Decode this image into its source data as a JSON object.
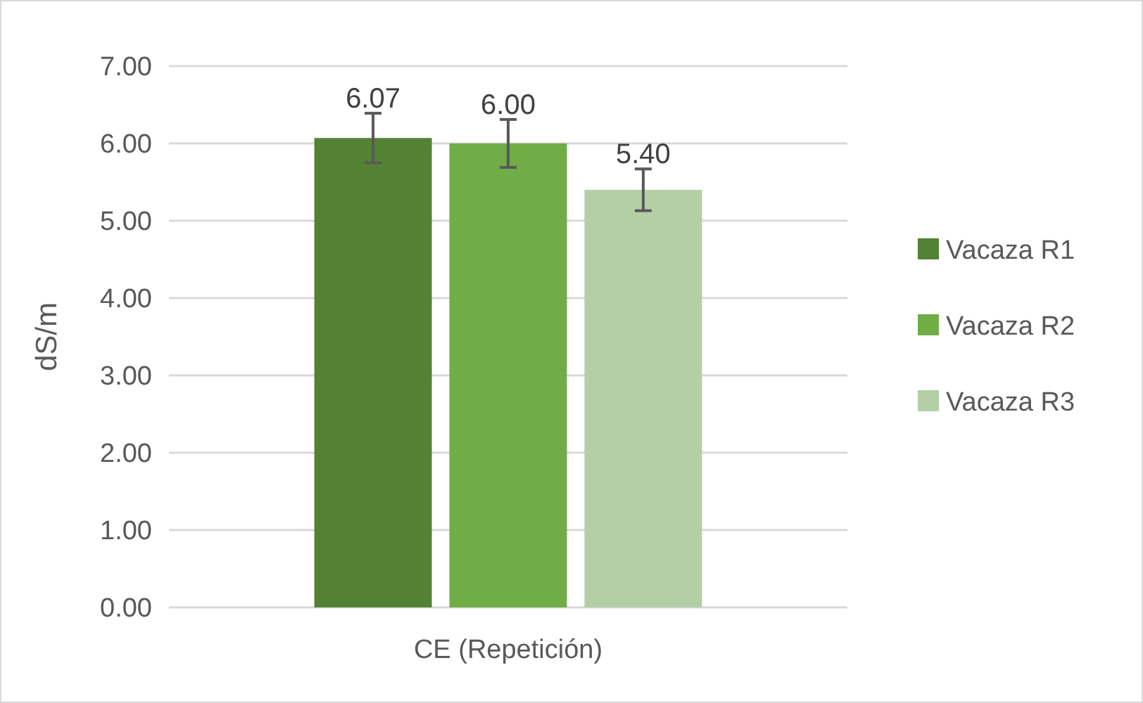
{
  "chart_data": {
    "type": "bar",
    "ylabel": "dS/m",
    "categories": [
      "CE (Repetición)"
    ],
    "series": [
      {
        "name": "Vacaza R1",
        "color": "#548235",
        "values": [
          6.07
        ],
        "errors": [
          0.32
        ],
        "value_labels": [
          "6.07"
        ]
      },
      {
        "name": "Vacaza R2",
        "color": "#70ad47",
        "values": [
          6.0
        ],
        "errors": [
          0.31
        ],
        "value_labels": [
          "6.00"
        ]
      },
      {
        "name": "Vacaza R3",
        "color": "#b4cfa6",
        "values": [
          5.4
        ],
        "errors": [
          0.27
        ],
        "value_labels": [
          "5.40"
        ]
      }
    ],
    "ylim": [
      0,
      7
    ],
    "yticks": [
      {
        "value": 0,
        "label": "0.00"
      },
      {
        "value": 1,
        "label": "1.00"
      },
      {
        "value": 2,
        "label": "2.00"
      },
      {
        "value": 3,
        "label": "3.00"
      },
      {
        "value": 4,
        "label": "4.00"
      },
      {
        "value": 5,
        "label": "5.00"
      },
      {
        "value": 6,
        "label": "6.00"
      },
      {
        "value": 7,
        "label": "7.00"
      }
    ],
    "grid": "y",
    "legend": "right"
  }
}
